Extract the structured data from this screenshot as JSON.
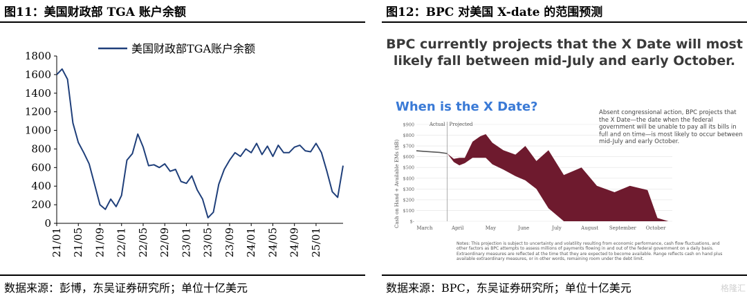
{
  "left": {
    "title": "图11：美国财政部 TGA 账户余额",
    "source": "数据来源：彭博，东吴证券研究所；单位十亿美元",
    "chart_data": {
      "type": "line",
      "title": "",
      "xlabel": "",
      "ylabel": "",
      "ylim": [
        0,
        1800
      ],
      "yticks": [
        0,
        200,
        400,
        600,
        800,
        1000,
        1200,
        1400,
        1600,
        1800
      ],
      "xticks": [
        "21/01",
        "21/05",
        "21/09",
        "22/01",
        "22/05",
        "22/09",
        "23/01",
        "23/05",
        "23/09",
        "24/01",
        "24/05",
        "24/09",
        "25/01"
      ],
      "legend_position": "top",
      "grid": false,
      "series": [
        {
          "name": "美国财政部TGA账户余额",
          "color": "#1f3f7a",
          "x": [
            "2021-01",
            "2021-02",
            "2021-03",
            "2021-04",
            "2021-05",
            "2021-06",
            "2021-07",
            "2021-08",
            "2021-09",
            "2021-10",
            "2021-11",
            "2021-12",
            "2022-01",
            "2022-02",
            "2022-03",
            "2022-04",
            "2022-05",
            "2022-06",
            "2022-07",
            "2022-08",
            "2022-09",
            "2022-10",
            "2022-11",
            "2022-12",
            "2023-01",
            "2023-02",
            "2023-03",
            "2023-04",
            "2023-05",
            "2023-06",
            "2023-07",
            "2023-08",
            "2023-09",
            "2023-10",
            "2023-11",
            "2023-12",
            "2024-01",
            "2024-02",
            "2024-03",
            "2024-04",
            "2024-05",
            "2024-06",
            "2024-07",
            "2024-08",
            "2024-09",
            "2024-10",
            "2024-11",
            "2024-12",
            "2025-01",
            "2025-02",
            "2025-03",
            "2025-04",
            "2025-05",
            "2025-06"
          ],
          "values": [
            1600,
            1660,
            1550,
            1080,
            870,
            760,
            640,
            420,
            200,
            150,
            260,
            180,
            300,
            680,
            750,
            960,
            820,
            620,
            630,
            600,
            640,
            560,
            580,
            450,
            430,
            510,
            360,
            260,
            60,
            120,
            420,
            580,
            680,
            760,
            720,
            800,
            760,
            860,
            740,
            830,
            720,
            840,
            760,
            760,
            820,
            840,
            780,
            770,
            860,
            760,
            560,
            340,
            280,
            620
          ]
        }
      ]
    }
  },
  "right": {
    "title": "图12：BPC 对美国 X-date 的范围预测",
    "source": "数据来源：BPC，东吴证券研究所；单位十亿美元",
    "headline": "BPC currently projects that the X Date will most likely fall between mid-July and early October.",
    "subtitle": "When is the X Date?",
    "annotation": "Absent congressional action, BPC projects that the X Date—the date when the federal government will be unable to pay all its bills in full and on time—is most likely to occur between mid-July and early October.",
    "notes": "Notes: This projection is subject to uncertainty and volatility resulting from economic performance, cash flow fluctuations, and other factors as BPC attempts to assess millions of payments flowing in and out of the federal government on a daily basis. Extraordinary measures are reflected at the time that they are expected to become available. Range reflects cash on hand plus available extraordinary measures, or in other words, remaining room under the debt limit.",
    "watermark": "格隆汇",
    "chart_data": {
      "type": "area",
      "title": "When is the X Date?",
      "ylabel": "Cash on Hand + Available EMs ($B)",
      "xlabel": "",
      "ylim": [
        0,
        900
      ],
      "yticks": [
        "$-",
        "$100",
        "$200",
        "$300",
        "$400",
        "$500",
        "$600",
        "$700",
        "$800",
        "$900"
      ],
      "yticks_values": [
        0,
        100,
        200,
        300,
        400,
        500,
        600,
        700,
        800,
        900
      ],
      "xticks": [
        "March",
        "April",
        "May",
        "June",
        "July",
        "August",
        "September",
        "October"
      ],
      "section_labels": [
        "Actual",
        "Projected"
      ],
      "actual_color": "#555555",
      "range_color": "#6e1a2e",
      "actual": {
        "x": [
          "Mar 01",
          "Mar 08",
          "Mar 15",
          "Mar 22",
          "Mar 29"
        ],
        "values": [
          655,
          650,
          645,
          640,
          630
        ]
      },
      "range_upper": {
        "x": [
          "Mar 29",
          "Apr 05",
          "Apr 10",
          "Apr 15",
          "Apr 22",
          "Apr 29",
          "May 04",
          "May 10",
          "May 20",
          "Jun 01",
          "Jun 10",
          "Jun 20",
          "Jul 01",
          "Jul 15",
          "Aug 01",
          "Aug 15",
          "Sep 01",
          "Sep 15",
          "Oct 01",
          "Oct 10",
          "Oct 20"
        ],
        "values": [
          630,
          580,
          590,
          590,
          740,
          790,
          810,
          730,
          660,
          620,
          700,
          560,
          660,
          430,
          500,
          330,
          270,
          330,
          290,
          30,
          0
        ]
      },
      "range_lower": {
        "x": [
          "Mar 29",
          "Apr 05",
          "Apr 10",
          "Apr 15",
          "Apr 22",
          "Apr 29",
          "May 04",
          "May 10",
          "May 20",
          "Jun 01",
          "Jun 10",
          "Jun 20",
          "Jul 01",
          "Jul 15",
          "Aug 01",
          "Aug 15",
          "Sep 01",
          "Sep 15",
          "Oct 01",
          "Oct 10",
          "Oct 20"
        ],
        "values": [
          630,
          550,
          520,
          540,
          590,
          590,
          590,
          530,
          480,
          420,
          380,
          300,
          120,
          0,
          0,
          0,
          0,
          0,
          0,
          0,
          0
        ]
      }
    }
  }
}
